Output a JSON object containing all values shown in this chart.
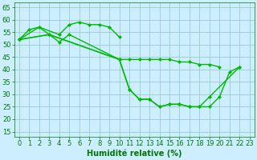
{
  "series": [
    {
      "x": [
        0,
        1,
        2,
        4,
        5,
        6,
        7,
        8,
        9,
        10
      ],
      "y": [
        52,
        56,
        57,
        54,
        58,
        59,
        58,
        58,
        57,
        53
      ]
    },
    {
      "x": [
        0,
        2,
        3,
        4,
        5,
        10,
        11,
        12,
        13,
        14,
        15,
        16,
        17,
        18,
        19,
        20,
        21,
        22
      ],
      "y": [
        52,
        57,
        54,
        51,
        54,
        44,
        32,
        28,
        28,
        25,
        26,
        26,
        25,
        25,
        25,
        29,
        39,
        41
      ]
    },
    {
      "x": [
        0,
        3,
        10,
        11,
        12,
        13,
        14,
        15,
        16,
        17,
        18,
        19,
        22
      ],
      "y": [
        52,
        54,
        44,
        32,
        28,
        28,
        25,
        26,
        26,
        25,
        25,
        29,
        41
      ]
    },
    {
      "x": [
        0,
        3,
        10,
        11,
        12,
        13,
        14,
        15,
        16,
        17,
        18,
        19,
        20
      ],
      "y": [
        52,
        54,
        44,
        44,
        44,
        44,
        44,
        44,
        43,
        43,
        42,
        42,
        41
      ]
    }
  ],
  "line_color": "#00bb00",
  "marker": "D",
  "markersize": 2,
  "linewidth": 1.0,
  "bg_color": "#cceeff",
  "grid_color": "#99cccc",
  "xlabel": "Humidité relative (%)",
  "xlabel_color": "#007700",
  "xlabel_fontsize": 7,
  "tick_color": "#007700",
  "tick_fontsize": 6,
  "ylim": [
    13,
    67
  ],
  "xlim": [
    -0.5,
    23.5
  ],
  "yticks": [
    15,
    20,
    25,
    30,
    35,
    40,
    45,
    50,
    55,
    60,
    65
  ],
  "xticks": [
    0,
    1,
    2,
    3,
    4,
    5,
    6,
    7,
    8,
    9,
    10,
    11,
    12,
    13,
    14,
    15,
    16,
    17,
    18,
    19,
    20,
    21,
    22,
    23
  ]
}
